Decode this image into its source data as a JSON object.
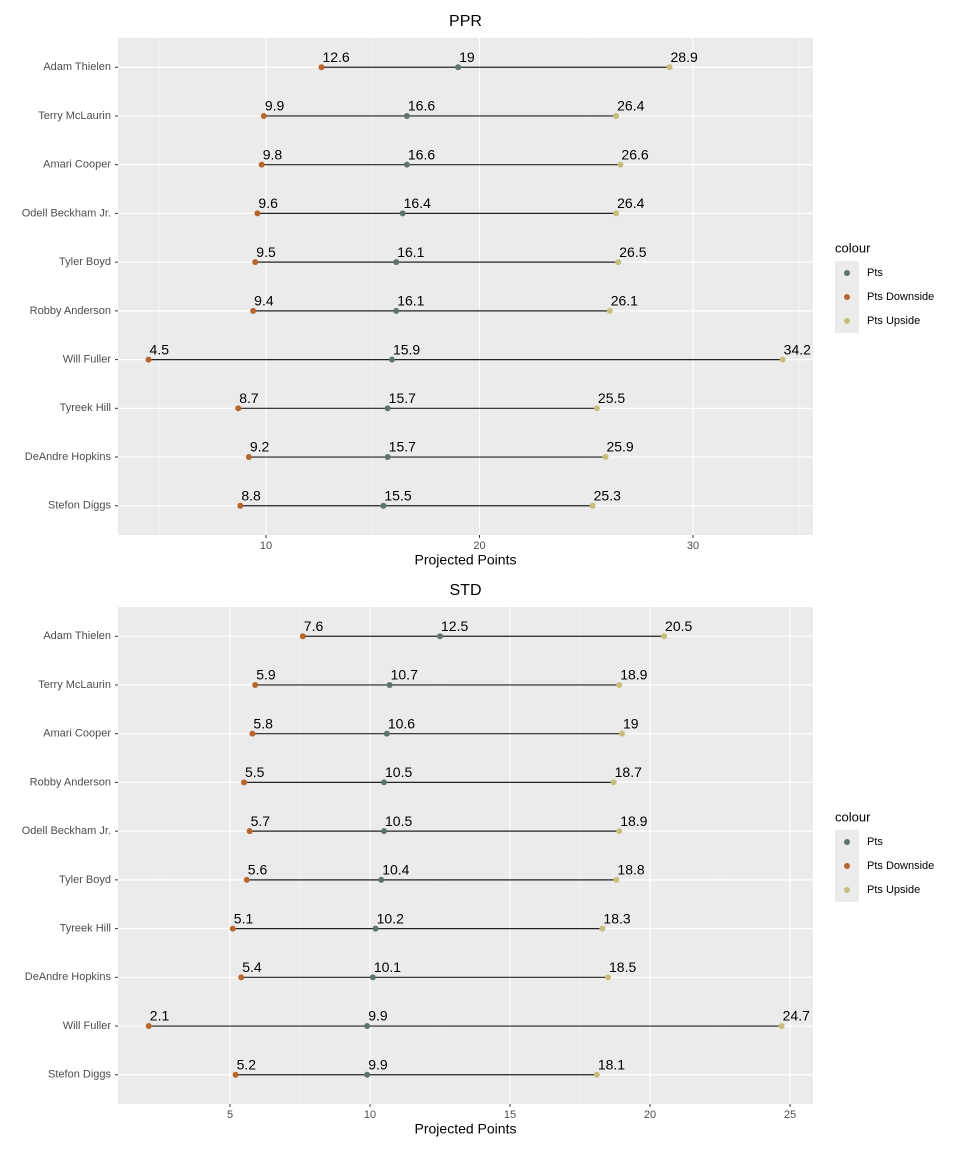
{
  "chart_data": [
    {
      "type": "dumbbell",
      "title": "PPR",
      "x_label": "Projected Points",
      "legend_title": "colour",
      "legend_position": "right",
      "grid": true,
      "categories": [
        "Adam Thielen",
        "Terry McLaurin",
        "Amari Cooper",
        "Odell Beckham Jr.",
        "Tyler Boyd",
        "Robby Anderson",
        "Will Fuller",
        "Tyreek Hill",
        "DeAndre Hopkins",
        "Stefon Diggs"
      ],
      "series": [
        {
          "name": "Pts",
          "color": "#5e726f",
          "values": [
            19,
            16.6,
            16.6,
            16.4,
            16.1,
            16.1,
            15.9,
            15.7,
            15.7,
            15.5
          ]
        },
        {
          "name": "Pts Downside",
          "color": "#b8652b",
          "values": [
            12.6,
            9.9,
            9.8,
            9.6,
            9.5,
            9.4,
            4.5,
            8.7,
            9.2,
            8.8
          ]
        },
        {
          "name": "Pts Upside",
          "color": "#c6bf7c",
          "values": [
            28.9,
            26.4,
            26.6,
            26.4,
            26.5,
            26.1,
            34.2,
            25.5,
            25.9,
            25.3
          ]
        }
      ],
      "xlim": [
        3.07,
        35.62
      ],
      "xticks": [
        10,
        20,
        30
      ],
      "x_minor_ticks": [
        5,
        15,
        25,
        35
      ]
    },
    {
      "type": "dumbbell",
      "title": "STD",
      "x_label": "Projected Points",
      "legend_title": "colour",
      "legend_position": "right",
      "grid": true,
      "categories": [
        "Adam Thielen",
        "Terry McLaurin",
        "Amari Cooper",
        "Robby Anderson",
        "Odell Beckham Jr.",
        "Tyler Boyd",
        "Tyreek Hill",
        "DeAndre Hopkins",
        "Will Fuller",
        "Stefon Diggs"
      ],
      "series": [
        {
          "name": "Pts",
          "color": "#5e726f",
          "values": [
            12.5,
            10.7,
            10.6,
            10.5,
            10.5,
            10.4,
            10.2,
            10.1,
            9.9,
            9.9
          ]
        },
        {
          "name": "Pts Downside",
          "color": "#b8652b",
          "values": [
            7.6,
            5.9,
            5.8,
            5.5,
            5.7,
            5.6,
            5.1,
            5.4,
            2.1,
            5.2
          ]
        },
        {
          "name": "Pts Upside",
          "color": "#c6bf7c",
          "values": [
            20.5,
            18.9,
            19,
            18.7,
            18.9,
            18.8,
            18.3,
            18.5,
            24.7,
            18.1
          ]
        }
      ],
      "xlim": [
        1.0,
        25.82
      ],
      "xticks": [
        5,
        10,
        15,
        20,
        25
      ],
      "x_minor_ticks": [
        2.5,
        7.5,
        12.5,
        17.5,
        22.5
      ]
    }
  ]
}
